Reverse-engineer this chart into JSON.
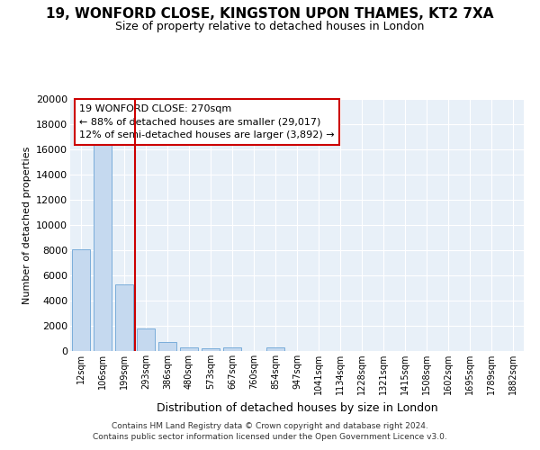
{
  "title_line1": "19, WONFORD CLOSE, KINGSTON UPON THAMES, KT2 7XA",
  "title_line2": "Size of property relative to detached houses in London",
  "xlabel": "Distribution of detached houses by size in London",
  "ylabel": "Number of detached properties",
  "categories": [
    "12sqm",
    "106sqm",
    "199sqm",
    "293sqm",
    "386sqm",
    "480sqm",
    "573sqm",
    "667sqm",
    "760sqm",
    "854sqm",
    "947sqm",
    "1041sqm",
    "1134sqm",
    "1228sqm",
    "1321sqm",
    "1415sqm",
    "1508sqm",
    "1602sqm",
    "1695sqm",
    "1789sqm",
    "1882sqm"
  ],
  "values": [
    8100,
    16500,
    5300,
    1800,
    750,
    300,
    200,
    300,
    0,
    300,
    0,
    0,
    0,
    0,
    0,
    0,
    0,
    0,
    0,
    0,
    0
  ],
  "bar_color": "#c5d9ef",
  "bar_edge_color": "#7aadda",
  "vline_x_index": 2.5,
  "vline_color": "#cc0000",
  "annotation_text": "19 WONFORD CLOSE: 270sqm\n← 88% of detached houses are smaller (29,017)\n12% of semi-detached houses are larger (3,892) →",
  "annotation_box_color": "#cc0000",
  "ylim": [
    0,
    20000
  ],
  "yticks": [
    0,
    2000,
    4000,
    6000,
    8000,
    10000,
    12000,
    14000,
    16000,
    18000,
    20000
  ],
  "footer_line1": "Contains HM Land Registry data © Crown copyright and database right 2024.",
  "footer_line2": "Contains public sector information licensed under the Open Government Licence v3.0.",
  "bg_color": "#ffffff",
  "plot_bg_color": "#e8f0f8",
  "grid_color": "#ffffff",
  "title_fontsize": 11,
  "subtitle_fontsize": 9,
  "ylabel_fontsize": 8,
  "xlabel_fontsize": 9
}
